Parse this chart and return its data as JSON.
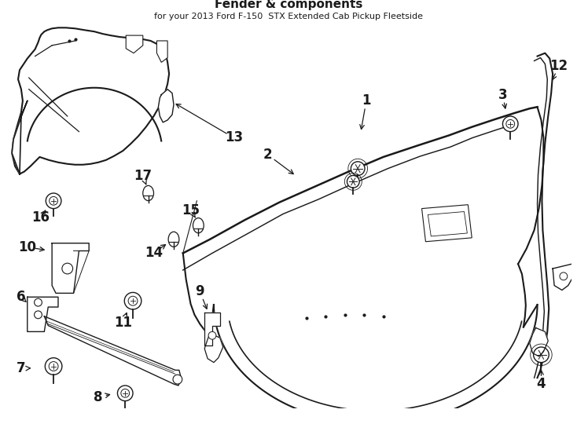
{
  "title": "Fender & components",
  "subtitle": "for your 2013 Ford F-150  STX Extended Cab Pickup Fleetside",
  "bg_color": "#ffffff",
  "line_color": "#1a1a1a",
  "fig_width": 7.34,
  "fig_height": 5.4,
  "dpi": 100
}
